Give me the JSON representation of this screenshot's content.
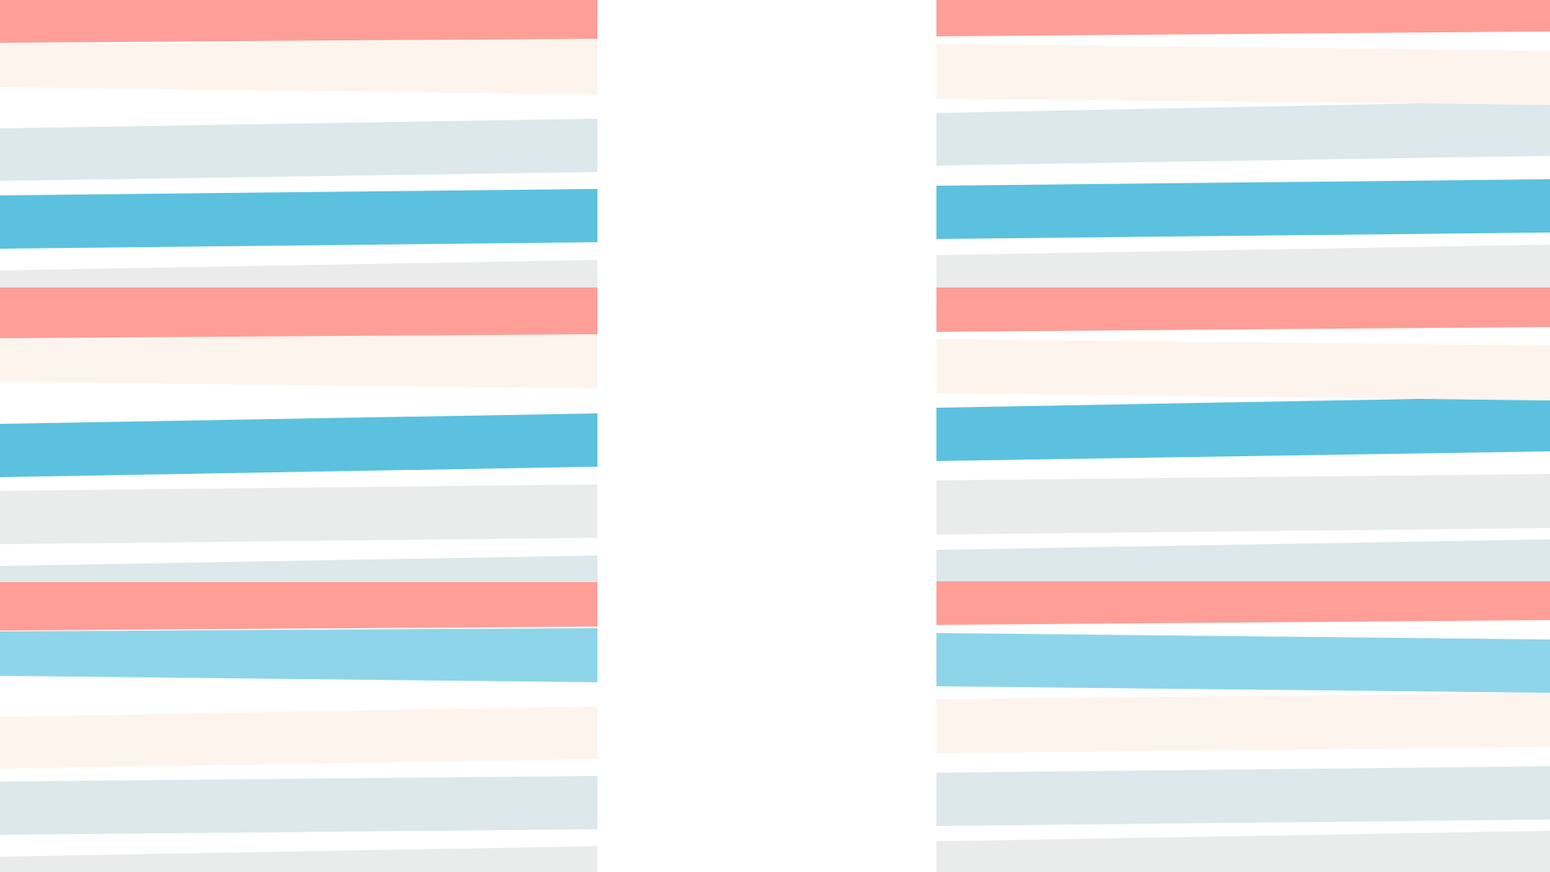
{
  "palette": {
    "salmon": "#FF9E97",
    "cream": "#FDF4EE",
    "mist": "#DCE8EB",
    "blue": "#5BC1DF",
    "grey": "#E9ECEA",
    "sky": "#8ED5EA",
    "background": "#FFFFFF"
  },
  "left_panel": {
    "stripes": [
      "salmon",
      "cream",
      "mist",
      "blue",
      "grey",
      "salmon",
      "cream",
      "blue",
      "grey",
      "mist",
      "salmon",
      "sky",
      "cream",
      "mist",
      "grey"
    ]
  },
  "right_panel": {
    "stripes": [
      "salmon",
      "cream",
      "mist",
      "blue",
      "grey",
      "salmon",
      "cream",
      "blue",
      "grey",
      "mist",
      "salmon",
      "sky",
      "cream",
      "mist",
      "grey"
    ]
  }
}
